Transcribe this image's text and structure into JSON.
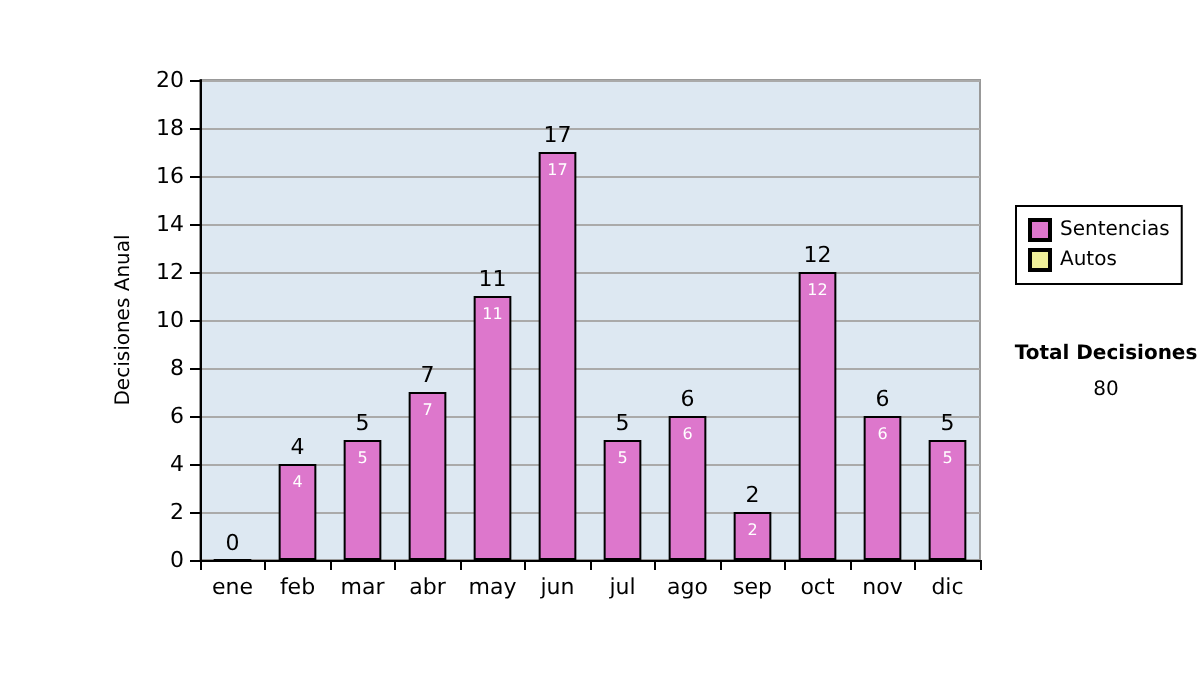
{
  "chart_data": {
    "type": "bar",
    "ylabel": "Decisiones Anual",
    "categories": [
      "ene",
      "feb",
      "mar",
      "abr",
      "may",
      "jun",
      "jul",
      "ago",
      "sep",
      "oct",
      "nov",
      "dic"
    ],
    "series": [
      {
        "name": "Sentencias",
        "color": "#dd77cc",
        "values": [
          0,
          4,
          5,
          7,
          11,
          17,
          5,
          6,
          2,
          12,
          6,
          5
        ],
        "value_labels": [
          null,
          "4",
          "5",
          "7",
          "11",
          "17",
          "5",
          "6",
          "2",
          "12",
          "6",
          "5"
        ]
      },
      {
        "name": "Autos",
        "color": "#eeee99",
        "values": [
          null,
          null,
          null,
          null,
          null,
          null,
          null,
          null,
          null,
          null,
          null,
          null
        ]
      }
    ],
    "stacked": true,
    "totals": [
      "0",
      "4",
      "5",
      "7",
      "11",
      "17",
      "5",
      "6",
      "2",
      "12",
      "6",
      "5"
    ],
    "ylim": [
      0,
      20
    ],
    "yticks": [
      0,
      2,
      4,
      6,
      8,
      10,
      12,
      14,
      16,
      18,
      20
    ],
    "grid": "y",
    "legend": "right",
    "annotations": [
      "Total Decisiones",
      "80"
    ]
  }
}
